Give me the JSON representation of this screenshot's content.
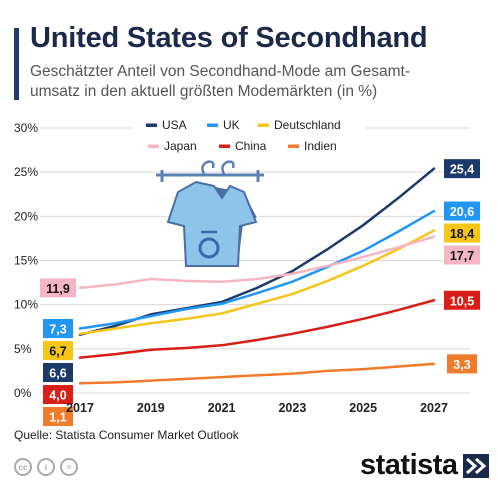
{
  "header": {
    "title": "United States of Secondhand",
    "subtitle": "Geschätzter Anteil von Secondhand-Mode am Gesamt-umsatz in den aktuell größten Modemärkten (in %)"
  },
  "footer": {
    "source": "Quelle: Statista Consumer Market Outlook",
    "brand": "statista",
    "license_icons": [
      "cc-icon",
      "person-icon",
      "equals-icon"
    ],
    "license_labels": [
      "cc",
      "i",
      "="
    ]
  },
  "colors": {
    "title": "#1b2a49",
    "accent": "#1f3c6e",
    "grid": "#d9d9d9",
    "axis_text": "#222222"
  },
  "chart_data": {
    "type": "line",
    "x": [
      2017,
      2018,
      2019,
      2020,
      2021,
      2022,
      2023,
      2024,
      2025,
      2026,
      2027
    ],
    "x_ticks": [
      2017,
      2019,
      2021,
      2023,
      2025,
      2027
    ],
    "y_ticks": [
      0,
      5,
      10,
      15,
      20,
      25,
      30
    ],
    "y_tick_labels": [
      "0%",
      "5%",
      "10%",
      "15%",
      "20%",
      "25%",
      "30%"
    ],
    "ylim": [
      0,
      30
    ],
    "xlim": [
      2017,
      2027
    ],
    "grid": true,
    "legend_position": "top",
    "series": [
      {
        "name": "USA",
        "color": "#1b3a6b",
        "label": "6,6",
        "end_label": "25,4",
        "values": [
          6.6,
          7.6,
          8.9,
          9.6,
          10.3,
          11.9,
          13.8,
          16.3,
          19.0,
          22.1,
          25.4
        ]
      },
      {
        "name": "UK",
        "color": "#2196f3",
        "label": "7,3",
        "end_label": "20,6",
        "values": [
          7.3,
          7.9,
          8.7,
          9.5,
          10.1,
          11.3,
          12.6,
          14.3,
          16.1,
          18.3,
          20.6
        ]
      },
      {
        "name": "Deutschland",
        "color": "#f5c518",
        "label": "6,7",
        "end_label": "18,4",
        "values": [
          6.7,
          7.3,
          7.9,
          8.4,
          9.0,
          10.1,
          11.2,
          12.7,
          14.4,
          16.3,
          18.4
        ]
      },
      {
        "name": "Japan",
        "color": "#f4b6c2",
        "label": "11,9",
        "end_label": "17,7",
        "values": [
          11.9,
          12.3,
          12.9,
          12.7,
          12.6,
          12.9,
          13.5,
          14.4,
          15.4,
          16.5,
          17.7
        ]
      },
      {
        "name": "China",
        "color": "#d91e18",
        "label": "4,0",
        "end_label": "10,5",
        "values": [
          4.0,
          4.4,
          4.9,
          5.1,
          5.4,
          6.0,
          6.7,
          7.5,
          8.4,
          9.4,
          10.5
        ]
      },
      {
        "name": "Indien",
        "color": "#f07b2a",
        "label": "1,1",
        "end_label": "3,3",
        "values": [
          1.1,
          1.2,
          1.4,
          1.6,
          1.8,
          2.0,
          2.2,
          2.5,
          2.7,
          3.0,
          3.3
        ]
      }
    ]
  }
}
